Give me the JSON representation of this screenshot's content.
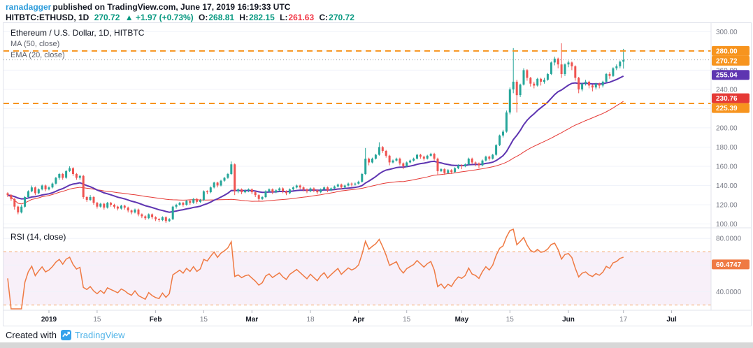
{
  "page": {
    "byline": {
      "username": "ranadagger",
      "rest": "published on TradingView.com, June 17, 2019 16:19:33 UTC"
    },
    "quote": {
      "symbol": "HITBTC:ETHUSD, 1D",
      "last": "270.72",
      "change": "▲ +1.97 (+0.73%)",
      "o_label": "O:",
      "o": "268.81",
      "h_label": "H:",
      "h": "282.15",
      "l_label": "L:",
      "l": "261.63",
      "c_label": "C:",
      "c": "270.72"
    },
    "footer": {
      "created_with": "Created with",
      "brand": "TradingView"
    },
    "colors": {
      "accent_blue": "#2d9cdb",
      "up": "#089981",
      "down": "#f23645"
    }
  },
  "chart_data": [
    {
      "type": "candlestick",
      "title": "Ethereum / U.S. Dollar, 1D, HITBTC",
      "indicator_labels": [
        "MA (50, close)",
        "EMA (20, close)"
      ],
      "up_color": "#26a69a",
      "down_color": "#ef5350",
      "ma50_color": "#e53935",
      "ema20_color": "#5e35b1",
      "ylim": [
        96,
        309
      ],
      "y_ticks": [
        300,
        280,
        260,
        240,
        220,
        200,
        180,
        160,
        140,
        120,
        100
      ],
      "last_price": 270.72,
      "horizontal_lines": [
        {
          "value": 280.0,
          "label": "280.00",
          "color": "#f7941e",
          "style": "dashed"
        },
        {
          "value": 225.39,
          "label": "225.39",
          "color": "#f7941e",
          "style": "dashed"
        }
      ],
      "axis_badges": [
        {
          "value": 280.0,
          "label": "280.00",
          "color": "#f7941e"
        },
        {
          "value": 270.72,
          "label": "270.72",
          "color": "#f7941e"
        },
        {
          "value": 255.04,
          "label": "255.04",
          "color": "#5e35b1"
        },
        {
          "value": 230.76,
          "label": "230.76",
          "color": "#e53935"
        },
        {
          "value": 225.39,
          "label": "225.39",
          "color": "#f7941e"
        }
      ],
      "time_ticks": [
        {
          "label": "2019",
          "day": 12,
          "major": true
        },
        {
          "label": "15",
          "day": 26,
          "major": false
        },
        {
          "label": "Feb",
          "day": 43,
          "major": true
        },
        {
          "label": "15",
          "day": 57,
          "major": false
        },
        {
          "label": "Mar",
          "day": 71,
          "major": true
        },
        {
          "label": "18",
          "day": 88,
          "major": false
        },
        {
          "label": "Apr",
          "day": 102,
          "major": true
        },
        {
          "label": "15",
          "day": 116,
          "major": false
        },
        {
          "label": "May",
          "day": 132,
          "major": true
        },
        {
          "label": "15",
          "day": 146,
          "major": false
        },
        {
          "label": "Jun",
          "day": 163,
          "major": true
        },
        {
          "label": "17",
          "day": 179,
          "major": false
        },
        {
          "label": "Jul",
          "day": 193,
          "major": true
        }
      ],
      "candles": [
        [
          132,
          133,
          128,
          130
        ],
        [
          130,
          131,
          124,
          126
        ],
        [
          126,
          127,
          115,
          118
        ],
        [
          118,
          119,
          110,
          112
        ],
        [
          112,
          120,
          111,
          118
        ],
        [
          118,
          129,
          117,
          128
        ],
        [
          128,
          135,
          127,
          134
        ],
        [
          134,
          140,
          133,
          138
        ],
        [
          138,
          139,
          130,
          132
        ],
        [
          132,
          137,
          131,
          136
        ],
        [
          136,
          141,
          135,
          140
        ],
        [
          140,
          141,
          134,
          136
        ],
        [
          136,
          139,
          135,
          138
        ],
        [
          138,
          143,
          137,
          142
        ],
        [
          142,
          149,
          141,
          148
        ],
        [
          148,
          153,
          146,
          152
        ],
        [
          152,
          153,
          146,
          148
        ],
        [
          148,
          156,
          147,
          155
        ],
        [
          155,
          160,
          154,
          158
        ],
        [
          158,
          159,
          150,
          152
        ],
        [
          152,
          153,
          146,
          148
        ],
        [
          148,
          151,
          146,
          150
        ],
        [
          150,
          151,
          126,
          128
        ],
        [
          128,
          129,
          123,
          125
        ],
        [
          125,
          130,
          124,
          128
        ],
        [
          128,
          129,
          120,
          122
        ],
        [
          122,
          123,
          116,
          118
        ],
        [
          118,
          122,
          117,
          121
        ],
        [
          121,
          122,
          115,
          117
        ],
        [
          117,
          123,
          116,
          122
        ],
        [
          122,
          123,
          118,
          120
        ],
        [
          120,
          121,
          116,
          118
        ],
        [
          118,
          119,
          114,
          116
        ],
        [
          116,
          120,
          115,
          119
        ],
        [
          119,
          120,
          115,
          117
        ],
        [
          117,
          118,
          112,
          114
        ],
        [
          114,
          115,
          110,
          112
        ],
        [
          112,
          116,
          111,
          115
        ],
        [
          115,
          116,
          108,
          110
        ],
        [
          110,
          111,
          106,
          108
        ],
        [
          108,
          109,
          104,
          106
        ],
        [
          106,
          111,
          105,
          110
        ],
        [
          110,
          111,
          105,
          107
        ],
        [
          107,
          108,
          103,
          105
        ],
        [
          105,
          106,
          102,
          104
        ],
        [
          104,
          108,
          103,
          107
        ],
        [
          107,
          108,
          101,
          103
        ],
        [
          103,
          106,
          102,
          105
        ],
        [
          105,
          119,
          104,
          118
        ],
        [
          118,
          121,
          116,
          120
        ],
        [
          120,
          123,
          119,
          122
        ],
        [
          122,
          123,
          118,
          120
        ],
        [
          120,
          125,
          119,
          124
        ],
        [
          124,
          125,
          120,
          122
        ],
        [
          122,
          127,
          121,
          126
        ],
        [
          126,
          127,
          121,
          123
        ],
        [
          123,
          126,
          122,
          125
        ],
        [
          125,
          135,
          124,
          134
        ],
        [
          134,
          135,
          131,
          133
        ],
        [
          133,
          139,
          132,
          138
        ],
        [
          138,
          144,
          137,
          143
        ],
        [
          143,
          144,
          138,
          140
        ],
        [
          140,
          146,
          139,
          145
        ],
        [
          145,
          149,
          144,
          148
        ],
        [
          148,
          153,
          147,
          152
        ],
        [
          152,
          165,
          151,
          162
        ],
        [
          162,
          163,
          130,
          134
        ],
        [
          134,
          137,
          132,
          136
        ],
        [
          136,
          137,
          131,
          133
        ],
        [
          133,
          136,
          132,
          135
        ],
        [
          135,
          137,
          133,
          136
        ],
        [
          136,
          137,
          131,
          133
        ],
        [
          133,
          134,
          128,
          130
        ],
        [
          130,
          131,
          124,
          126
        ],
        [
          126,
          129,
          125,
          128
        ],
        [
          128,
          135,
          127,
          134
        ],
        [
          134,
          137,
          133,
          136
        ],
        [
          136,
          137,
          131,
          133
        ],
        [
          133,
          136,
          132,
          135
        ],
        [
          135,
          138,
          134,
          137
        ],
        [
          137,
          138,
          132,
          134
        ],
        [
          134,
          135,
          130,
          132
        ],
        [
          132,
          137,
          131,
          136
        ],
        [
          136,
          139,
          135,
          138
        ],
        [
          138,
          141,
          137,
          140
        ],
        [
          140,
          141,
          136,
          138
        ],
        [
          138,
          139,
          134,
          136
        ],
        [
          136,
          137,
          132,
          134
        ],
        [
          134,
          138,
          133,
          137
        ],
        [
          137,
          138,
          133,
          135
        ],
        [
          135,
          136,
          131,
          133
        ],
        [
          133,
          137,
          132,
          136
        ],
        [
          136,
          139,
          135,
          138
        ],
        [
          138,
          139,
          133,
          135
        ],
        [
          135,
          138,
          134,
          137
        ],
        [
          137,
          140,
          136,
          139
        ],
        [
          139,
          142,
          138,
          141
        ],
        [
          141,
          142,
          136,
          138
        ],
        [
          138,
          141,
          137,
          140
        ],
        [
          140,
          143,
          139,
          142
        ],
        [
          142,
          143,
          139,
          141
        ],
        [
          141,
          143,
          140,
          142
        ],
        [
          142,
          145,
          141,
          144
        ],
        [
          144,
          153,
          143,
          152
        ],
        [
          152,
          179,
          151,
          168
        ],
        [
          168,
          169,
          161,
          164
        ],
        [
          164,
          169,
          163,
          168
        ],
        [
          168,
          173,
          167,
          172
        ],
        [
          172,
          185,
          171,
          180
        ],
        [
          180,
          181,
          174,
          176
        ],
        [
          176,
          177,
          169,
          171
        ],
        [
          171,
          172,
          161,
          164
        ],
        [
          164,
          167,
          163,
          166
        ],
        [
          166,
          169,
          165,
          168
        ],
        [
          168,
          169,
          161,
          163
        ],
        [
          163,
          164,
          157,
          160
        ],
        [
          160,
          165,
          159,
          164
        ],
        [
          164,
          167,
          163,
          166
        ],
        [
          166,
          169,
          165,
          168
        ],
        [
          168,
          173,
          167,
          172
        ],
        [
          172,
          173,
          168,
          170
        ],
        [
          170,
          171,
          166,
          168
        ],
        [
          168,
          172,
          167,
          171
        ],
        [
          171,
          174,
          170,
          173
        ],
        [
          173,
          174,
          166,
          168
        ],
        [
          168,
          169,
          151,
          155
        ],
        [
          155,
          158,
          154,
          157
        ],
        [
          157,
          158,
          151,
          153
        ],
        [
          153,
          157,
          152,
          156
        ],
        [
          156,
          157,
          152,
          154
        ],
        [
          154,
          159,
          153,
          158
        ],
        [
          158,
          162,
          157,
          161
        ],
        [
          161,
          162,
          157,
          160
        ],
        [
          160,
          163,
          159,
          162
        ],
        [
          162,
          169,
          161,
          168
        ],
        [
          168,
          169,
          162,
          164
        ],
        [
          164,
          165,
          160,
          163
        ],
        [
          163,
          164,
          158,
          161
        ],
        [
          161,
          167,
          160,
          166
        ],
        [
          166,
          171,
          165,
          170
        ],
        [
          170,
          171,
          166,
          168
        ],
        [
          168,
          173,
          167,
          172
        ],
        [
          172,
          183,
          171,
          182
        ],
        [
          182,
          193,
          181,
          192
        ],
        [
          192,
          198,
          190,
          196
        ],
        [
          196,
          218,
          195,
          216
        ],
        [
          216,
          242,
          214,
          240
        ],
        [
          240,
          283,
          236,
          248
        ],
        [
          248,
          250,
          216,
          234
        ],
        [
          234,
          246,
          232,
          245
        ],
        [
          245,
          262,
          244,
          260
        ],
        [
          260,
          261,
          249,
          252
        ],
        [
          252,
          253,
          243,
          246
        ],
        [
          246,
          248,
          241,
          244
        ],
        [
          244,
          252,
          243,
          251
        ],
        [
          251,
          252,
          244,
          248
        ],
        [
          248,
          252,
          246,
          250
        ],
        [
          250,
          257,
          249,
          256
        ],
        [
          256,
          269,
          255,
          268
        ],
        [
          268,
          274,
          265,
          272
        ],
        [
          272,
          273,
          262,
          266
        ],
        [
          266,
          288,
          252,
          256
        ],
        [
          256,
          267,
          254,
          266
        ],
        [
          266,
          270,
          263,
          268
        ],
        [
          268,
          269,
          260,
          264
        ],
        [
          264,
          265,
          249,
          252
        ],
        [
          252,
          253,
          236,
          240
        ],
        [
          240,
          247,
          238,
          246
        ],
        [
          246,
          250,
          244,
          248
        ],
        [
          248,
          249,
          241,
          244
        ],
        [
          244,
          245,
          238,
          242
        ],
        [
          242,
          247,
          240,
          246
        ],
        [
          246,
          247,
          241,
          244
        ],
        [
          244,
          249,
          242,
          248
        ],
        [
          248,
          257,
          247,
          256
        ],
        [
          256,
          258,
          251,
          254
        ],
        [
          254,
          263,
          253,
          262
        ],
        [
          262,
          266,
          260,
          264
        ],
        [
          264,
          270,
          262,
          268.81
        ],
        [
          268.81,
          282.15,
          261.63,
          270.72
        ]
      ]
    },
    {
      "type": "line",
      "title": "RSI (14, close)",
      "period": 14,
      "color": "#ef7a43",
      "band": [
        30,
        70
      ],
      "band_fill": "rgba(156,39,176,0.07)",
      "band_line_color": "#f2a66a",
      "ylim": [
        26,
        88
      ],
      "y_ticks": [
        {
          "value": 80,
          "label": "80.0000"
        },
        {
          "value": 60,
          "label": "60.0000"
        },
        {
          "value": 40,
          "label": "40.0000"
        }
      ],
      "badge": {
        "value": 60.4747,
        "label": "60.4747"
      }
    }
  ]
}
